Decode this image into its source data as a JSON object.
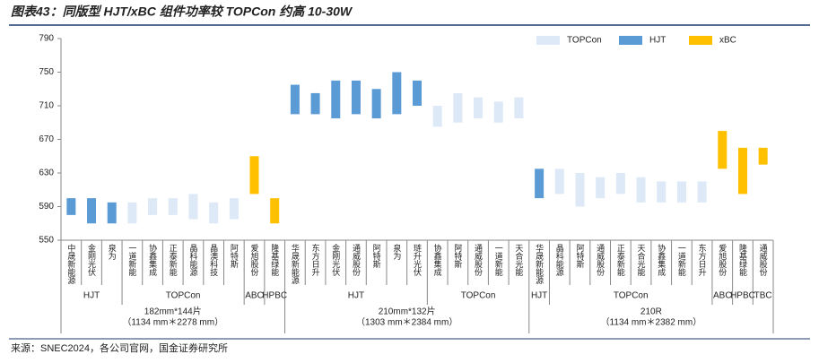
{
  "chart_data": {
    "type": "range-bar",
    "title": "图表43：同版型 HJT/xBC 组件功率较 TOPCon 约高 10-30W",
    "source": "来源：SNEC2024，各公司官网，国金证券研究所",
    "ylim": [
      550,
      790
    ],
    "yticks": [
      550,
      590,
      630,
      670,
      710,
      750,
      790
    ],
    "legend": "top-right",
    "groups": [
      {
        "label": "182mm*144片",
        "sublabel": "（1134 mm＊2278 mm）",
        "subgroups": [
          {
            "label": "HJT",
            "categories": [
              "中晟新能源",
              "金刚光伏",
              "泉为"
            ]
          },
          {
            "label": "TOPCon",
            "categories": [
              "一道新能",
              "协鑫集成",
              "正泰新能",
              "晶科能源",
              "晶澳科技",
              "阿特斯"
            ]
          },
          {
            "label": "ABC",
            "categories": [
              "爱旭股份"
            ]
          },
          {
            "label": "HPBC",
            "categories": [
              "隆基绿能"
            ]
          }
        ]
      },
      {
        "label": "210mm*132片",
        "sublabel": "（1303 mm＊2384 mm）",
        "subgroups": [
          {
            "label": "HJT",
            "categories": [
              "华晟新能源",
              "东方日升",
              "金刚光伏",
              "通威股份",
              "阿特斯",
              "泉为",
              "琏升光伏"
            ]
          },
          {
            "label": "TOPCon",
            "categories": [
              "协鑫集成",
              "阿特斯",
              "通威股份",
              "一道新能",
              "天合光能"
            ]
          }
        ]
      },
      {
        "label": "210R",
        "sublabel": "（1134 mm＊2382 mm）",
        "subgroups": [
          {
            "label": "HJT",
            "categories": [
              "华晟新能源"
            ]
          },
          {
            "label": "TOPCon",
            "categories": [
              "晶科能源",
              "阿特斯",
              "通威股份",
              "正泰新能",
              "天合光能",
              "协鑫集成",
              "一道新能",
              "东方日升"
            ]
          },
          {
            "label": "ABC",
            "categories": [
              "爱旭股份"
            ]
          },
          {
            "label": "HPBC",
            "categories": [
              "隆基绿能"
            ]
          },
          {
            "label": "TBC",
            "categories": [
              "通威股份"
            ]
          }
        ]
      }
    ],
    "series": [
      {
        "name": "TOPCon",
        "color": "#dde9f6",
        "low": [
          null,
          null,
          null,
          570,
          580,
          580,
          575,
          570,
          575,
          null,
          null,
          null,
          null,
          null,
          null,
          null,
          null,
          null,
          685,
          690,
          695,
          690,
          695,
          null,
          605,
          590,
          600,
          605,
          595,
          595,
          595,
          595,
          null,
          null,
          null
        ],
        "high": [
          null,
          null,
          null,
          595,
          600,
          600,
          605,
          595,
          600,
          null,
          null,
          null,
          null,
          null,
          null,
          null,
          null,
          null,
          710,
          725,
          720,
          715,
          720,
          null,
          635,
          630,
          625,
          630,
          625,
          620,
          620,
          620,
          null,
          null,
          null
        ]
      },
      {
        "name": "HJT",
        "color": "#5b9bd5",
        "low": [
          580,
          570,
          570,
          null,
          null,
          null,
          null,
          null,
          null,
          null,
          null,
          700,
          700,
          695,
          700,
          695,
          700,
          710,
          null,
          null,
          null,
          null,
          null,
          600,
          null,
          null,
          null,
          null,
          null,
          null,
          null,
          null,
          null,
          null,
          null
        ],
        "high": [
          600,
          600,
          595,
          null,
          null,
          null,
          null,
          null,
          null,
          null,
          null,
          735,
          725,
          740,
          740,
          730,
          750,
          740,
          null,
          null,
          null,
          null,
          null,
          635,
          null,
          null,
          null,
          null,
          null,
          null,
          null,
          null,
          null,
          null,
          null
        ]
      },
      {
        "name": "xBC",
        "color": "#ffc000",
        "low": [
          null,
          null,
          null,
          null,
          null,
          null,
          null,
          null,
          null,
          605,
          570,
          null,
          null,
          null,
          null,
          null,
          null,
          null,
          null,
          null,
          null,
          null,
          null,
          null,
          null,
          null,
          null,
          null,
          null,
          null,
          null,
          null,
          635,
          605,
          640
        ],
        "high": [
          null,
          null,
          null,
          null,
          null,
          null,
          null,
          null,
          null,
          650,
          600,
          null,
          null,
          null,
          null,
          null,
          null,
          null,
          null,
          null,
          null,
          null,
          null,
          null,
          null,
          null,
          null,
          null,
          null,
          null,
          null,
          null,
          680,
          660,
          660
        ]
      }
    ]
  }
}
